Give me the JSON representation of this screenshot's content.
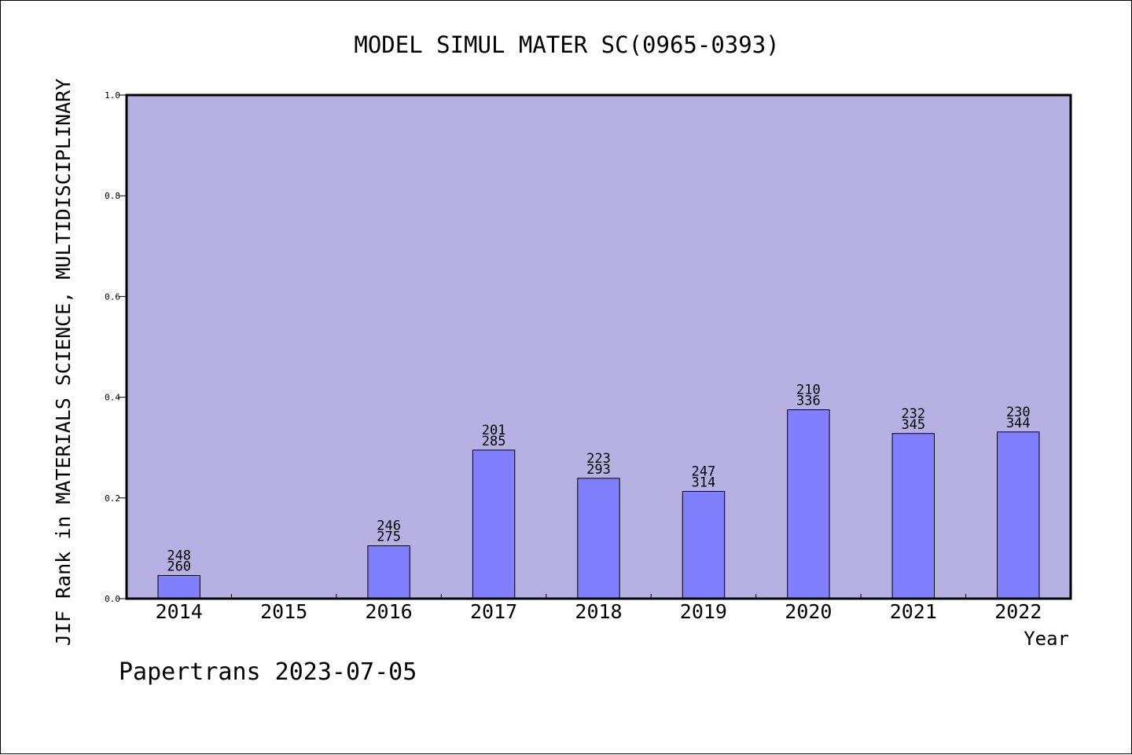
{
  "chart_data": {
    "type": "bar",
    "title": "MODEL SIMUL MATER SC(0965-0393)",
    "xlabel": "Year",
    "ylabel": "JIF Rank in MATERIALS SCIENCE, MULTIDISCIPLINARY",
    "footer": "Papertrans 2023-07-05",
    "ylim": [
      0,
      1.0
    ],
    "yticks": [
      "0.0",
      "0.2",
      "0.4",
      "0.6",
      "0.8",
      "1.0"
    ],
    "categories": [
      "2014",
      "2015",
      "2016",
      "2017",
      "2018",
      "2019",
      "2020",
      "2021",
      "2022"
    ],
    "values": [
      0.046,
      0,
      0.105,
      0.295,
      0.239,
      0.213,
      0.375,
      0.328,
      0.331
    ],
    "rank_labels": [
      "248",
      "",
      "246",
      "201",
      "223",
      "247",
      "210",
      "232",
      "230"
    ],
    "total_labels": [
      "260",
      "",
      "275",
      "285",
      "293",
      "314",
      "336",
      "345",
      "344"
    ],
    "grid": false,
    "colors": {
      "plot_background": "#b6b0e3",
      "bar_fill": "#8080ff",
      "axis": "#000000"
    }
  }
}
